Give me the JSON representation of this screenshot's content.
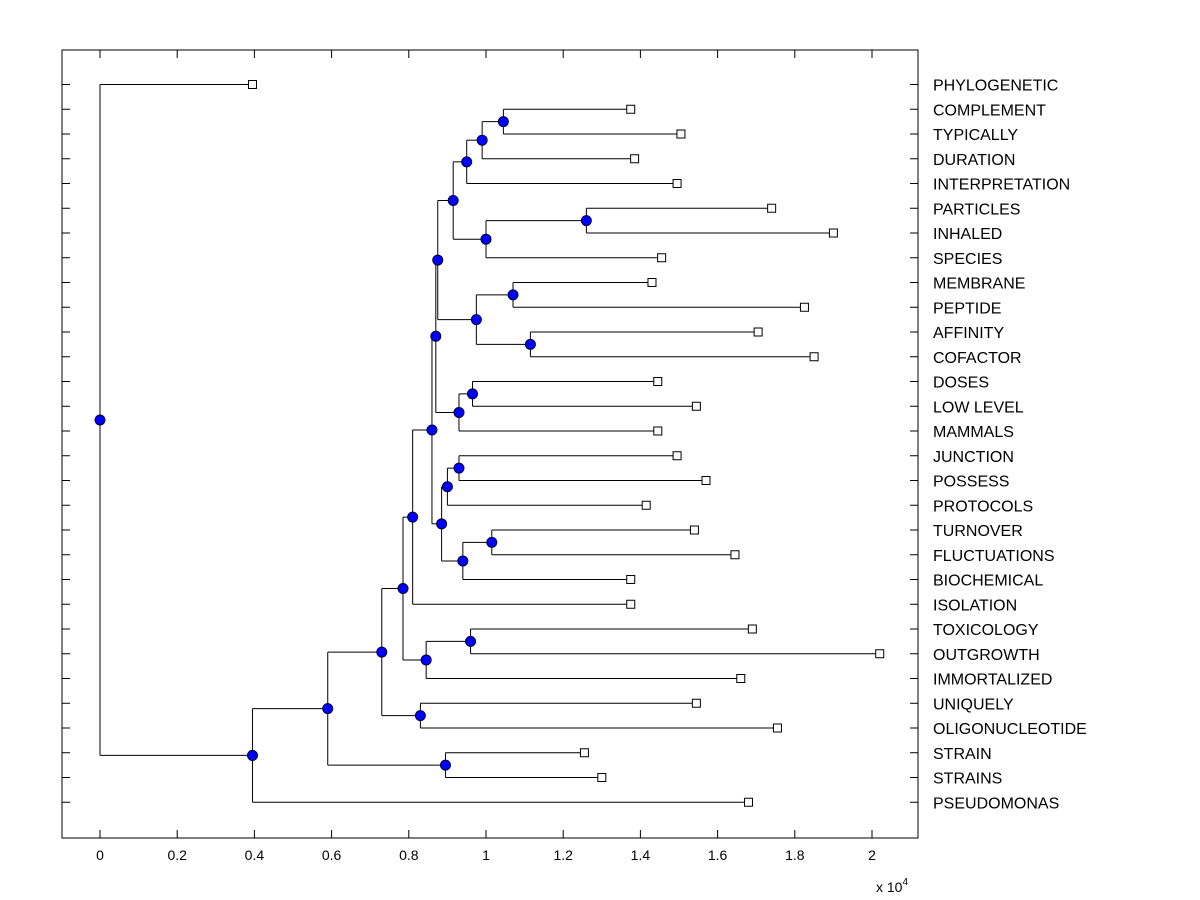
{
  "colors": {
    "background": "#ffffff",
    "line": "#000000",
    "node_fill": "#0000ff",
    "leaf_fill": "#ffffff"
  },
  "icons": {
    "internal_node": "filled-circle-icon",
    "leaf_node": "hollow-square-icon"
  },
  "chart_data": {
    "type": "dendrogram",
    "orientation": "left-to-right",
    "x_axis": {
      "range": [
        -1000,
        21300
      ],
      "ticks": [
        0,
        2000,
        4000,
        6000,
        8000,
        10000,
        12000,
        14000,
        16000,
        18000,
        20000
      ],
      "tick_labels": [
        "0",
        "0.2",
        "0.4",
        "0.6",
        "0.8",
        "1",
        "1.2",
        "1.4",
        "1.6",
        "1.8",
        "2"
      ],
      "multiplier_base": "x 10",
      "multiplier_exponent": "4"
    },
    "grid": false,
    "leaves": [
      {
        "label": "PHYLOGENETIC",
        "x": 3950
      },
      {
        "label": "COMPLEMENT",
        "x": 13750
      },
      {
        "label": "TYPICALLY",
        "x": 15050
      },
      {
        "label": "DURATION",
        "x": 13850
      },
      {
        "label": "INTERPRETATION",
        "x": 14950
      },
      {
        "label": "PARTICLES",
        "x": 17400
      },
      {
        "label": "INHALED",
        "x": 19000
      },
      {
        "label": "SPECIES",
        "x": 14550
      },
      {
        "label": "MEMBRANE",
        "x": 14300
      },
      {
        "label": "PEPTIDE",
        "x": 18250
      },
      {
        "label": "AFFINITY",
        "x": 17050
      },
      {
        "label": "COFACTOR",
        "x": 18500
      },
      {
        "label": "DOSES",
        "x": 14450
      },
      {
        "label": "LOW LEVEL",
        "x": 15450
      },
      {
        "label": "MAMMALS",
        "x": 14450
      },
      {
        "label": "JUNCTION",
        "x": 14950
      },
      {
        "label": "POSSESS",
        "x": 15700
      },
      {
        "label": "PROTOCOLS",
        "x": 14150
      },
      {
        "label": "TURNOVER",
        "x": 15400
      },
      {
        "label": "FLUCTUATIONS",
        "x": 16450
      },
      {
        "label": "BIOCHEMICAL",
        "x": 13750
      },
      {
        "label": "ISOLATION",
        "x": 13750
      },
      {
        "label": "TOXICOLOGY",
        "x": 16900
      },
      {
        "label": "OUTGROWTH",
        "x": 20200
      },
      {
        "label": "IMMORTALIZED",
        "x": 16600
      },
      {
        "label": "UNIQUELY",
        "x": 15450
      },
      {
        "label": "OLIGONUCLEOTIDE",
        "x": 17550
      },
      {
        "label": "STRAIN",
        "x": 12550
      },
      {
        "label": "STRAINS",
        "x": 13000
      },
      {
        "label": "PSEUDOMONAS",
        "x": 16800
      }
    ],
    "nodes": [
      {
        "id": "n1",
        "x": 10450,
        "children": [
          "L1",
          "L2"
        ]
      },
      {
        "id": "n2",
        "x": 9900,
        "children": [
          "n1",
          "L3"
        ]
      },
      {
        "id": "n3",
        "x": 9500,
        "children": [
          "n2",
          "L4"
        ]
      },
      {
        "id": "n4",
        "x": 12600,
        "children": [
          "L5",
          "L6"
        ]
      },
      {
        "id": "n5",
        "x": 10000,
        "children": [
          "n4",
          "L7"
        ]
      },
      {
        "id": "n6",
        "x": 9150,
        "children": [
          "n3",
          "n5"
        ]
      },
      {
        "id": "n7",
        "x": 10700,
        "children": [
          "L8",
          "L9"
        ]
      },
      {
        "id": "n8",
        "x": 11150,
        "children": [
          "L10",
          "L11"
        ]
      },
      {
        "id": "n9",
        "x": 9750,
        "children": [
          "n7",
          "n8"
        ]
      },
      {
        "id": "n10",
        "x": 8750,
        "children": [
          "n6",
          "n9"
        ]
      },
      {
        "id": "n11",
        "x": 9650,
        "children": [
          "L12",
          "L13"
        ]
      },
      {
        "id": "n12",
        "x": 9300,
        "children": [
          "n11",
          "L14"
        ]
      },
      {
        "id": "n13",
        "x": 8700,
        "children": [
          "n10",
          "n12"
        ]
      },
      {
        "id": "n14",
        "x": 9300,
        "children": [
          "L15",
          "L16"
        ]
      },
      {
        "id": "n15",
        "x": 9000,
        "children": [
          "n14",
          "L17"
        ]
      },
      {
        "id": "n16",
        "x": 10150,
        "children": [
          "L18",
          "L19"
        ]
      },
      {
        "id": "n17",
        "x": 9400,
        "children": [
          "n16",
          "L20"
        ]
      },
      {
        "id": "n18",
        "x": 8850,
        "children": [
          "n15",
          "n17"
        ]
      },
      {
        "id": "n19",
        "x": 8600,
        "children": [
          "n13",
          "n18"
        ]
      },
      {
        "id": "n20",
        "x": 8100,
        "children": [
          "n19",
          "L21"
        ]
      },
      {
        "id": "n21",
        "x": 9600,
        "children": [
          "L22",
          "L23"
        ]
      },
      {
        "id": "n22",
        "x": 8450,
        "children": [
          "n21",
          "L24"
        ]
      },
      {
        "id": "n23",
        "x": 7850,
        "children": [
          "n20",
          "n22"
        ]
      },
      {
        "id": "n24",
        "x": 8300,
        "children": [
          "L25",
          "L26"
        ]
      },
      {
        "id": "n25",
        "x": 7300,
        "children": [
          "n23",
          "n24"
        ]
      },
      {
        "id": "n26",
        "x": 8950,
        "children": [
          "L27",
          "L28"
        ]
      },
      {
        "id": "n27",
        "x": 5900,
        "children": [
          "n25",
          "n26"
        ]
      },
      {
        "id": "n28",
        "x": 3950,
        "children": [
          "n27",
          "L29"
        ]
      },
      {
        "id": "n29",
        "x": 0,
        "children": [
          "L0",
          "n28"
        ]
      }
    ]
  }
}
